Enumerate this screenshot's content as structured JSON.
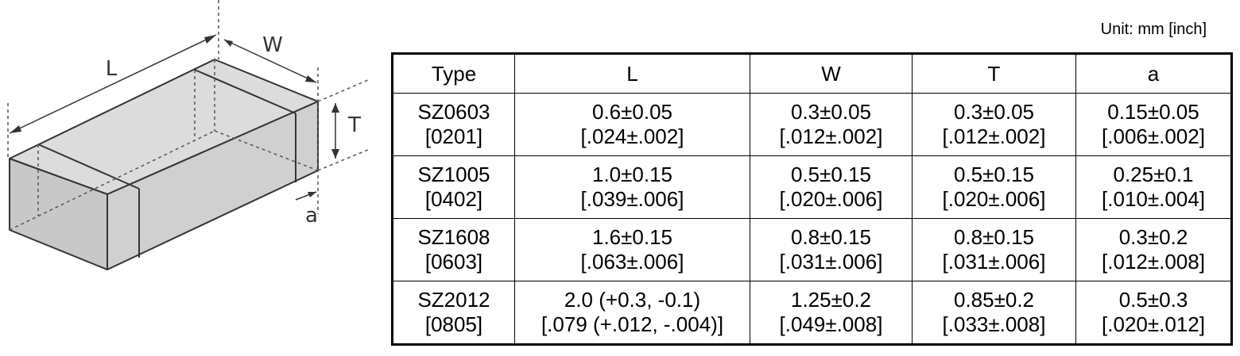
{
  "diagram": {
    "labels": {
      "L": "L",
      "W": "W",
      "T": "T",
      "a": "a"
    }
  },
  "unit": "Unit: mm [inch]",
  "table": {
    "header": [
      "Type",
      "L",
      "W",
      "T",
      "a"
    ],
    "rows": [
      [
        [
          "SZ0603",
          "[0201]"
        ],
        [
          "0.6±0.05",
          "[.024±.002]"
        ],
        [
          "0.3±0.05",
          "[.012±.002]"
        ],
        [
          "0.3±0.05",
          "[.012±.002]"
        ],
        [
          "0.15±0.05",
          "[.006±.002]"
        ]
      ],
      [
        [
          "SZ1005",
          "[0402]"
        ],
        [
          "1.0±0.15",
          "[.039±.006]"
        ],
        [
          "0.5±0.15",
          "[.020±.006]"
        ],
        [
          "0.5±0.15",
          "[.020±.006]"
        ],
        [
          "0.25±0.1",
          "[.010±.004]"
        ]
      ],
      [
        [
          "SZ1608",
          "[0603]"
        ],
        [
          "1.6±0.15",
          "[.063±.006]"
        ],
        [
          "0.8±0.15",
          "[.031±.006]"
        ],
        [
          "0.8±0.15",
          "[.031±.006]"
        ],
        [
          "0.3±0.2",
          "[.012±.008]"
        ]
      ],
      [
        [
          "SZ2012",
          "[0805]"
        ],
        [
          "2.0 (+0.3, -0.1)",
          "[.079 (+.012, -.004)]"
        ],
        [
          "1.25±0.2",
          "[.049±.008]"
        ],
        [
          "0.85±0.2",
          "[.033±.008]"
        ],
        [
          "0.5±0.3",
          "[.020±.012]"
        ]
      ]
    ]
  }
}
